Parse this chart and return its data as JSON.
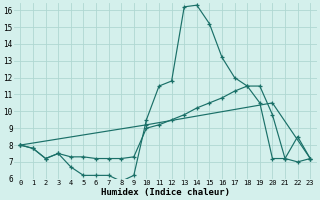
{
  "xlabel": "Humidex (Indice chaleur)",
  "background_color": "#d4f0ec",
  "grid_color": "#afd8d2",
  "line_color": "#1a7068",
  "xlim": [
    -0.5,
    23.5
  ],
  "ylim": [
    6,
    16.4
  ],
  "yticks": [
    6,
    7,
    8,
    9,
    10,
    11,
    12,
    13,
    14,
    15,
    16
  ],
  "xticks": [
    0,
    1,
    2,
    3,
    4,
    5,
    6,
    7,
    8,
    9,
    10,
    11,
    12,
    13,
    14,
    15,
    16,
    17,
    18,
    19,
    20,
    21,
    22,
    23
  ],
  "series": [
    {
      "x": [
        0,
        1,
        2,
        3,
        4,
        5,
        6,
        7,
        8,
        9,
        10,
        11,
        12,
        13,
        14,
        15,
        16,
        17,
        18,
        19,
        20,
        21,
        22,
        23
      ],
      "y": [
        8.0,
        7.8,
        7.2,
        7.5,
        6.7,
        6.2,
        6.2,
        6.2,
        5.85,
        6.2,
        9.5,
        11.5,
        11.8,
        16.2,
        16.3,
        15.2,
        13.2,
        12.0,
        11.5,
        11.5,
        9.8,
        7.2,
        8.5,
        7.2
      ]
    },
    {
      "x": [
        0,
        1,
        2,
        3,
        4,
        5,
        6,
        7,
        8,
        9,
        10,
        11,
        12,
        13,
        14,
        15,
        16,
        17,
        18,
        19,
        20,
        21,
        22,
        23
      ],
      "y": [
        8.0,
        7.8,
        7.2,
        7.5,
        7.3,
        7.3,
        7.2,
        7.2,
        7.2,
        7.3,
        9.0,
        9.2,
        9.5,
        9.8,
        10.2,
        10.5,
        10.8,
        11.2,
        11.5,
        10.5,
        7.2,
        7.2,
        7.0,
        7.2
      ]
    },
    {
      "x": [
        0,
        10,
        20,
        23
      ],
      "y": [
        8.0,
        9.2,
        10.5,
        7.2
      ]
    }
  ]
}
